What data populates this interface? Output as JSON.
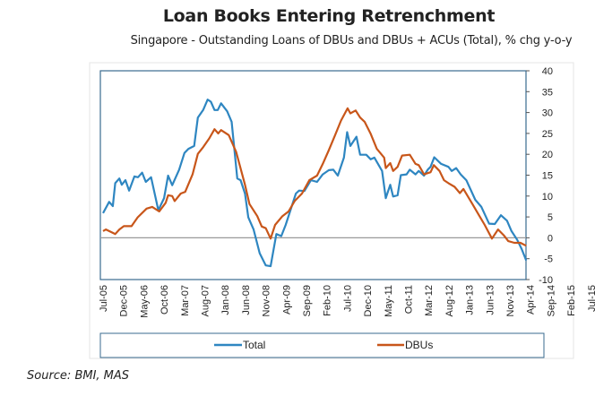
{
  "chart_data": {
    "type": "line",
    "title": "Loan Books Entering Retrenchment",
    "subtitle": "Singapore - Outstanding Loans of DBUs and DBUs + ACUs (Total), % chg y-o-y",
    "source": "Source: BMI, MAS",
    "x_unit": "months since Jul-05",
    "x_tick_labels": [
      "Jul-05",
      "Dec-05",
      "May-06",
      "Oct-06",
      "Mar-07",
      "Aug-07",
      "Jan-08",
      "Jun-08",
      "Nov-08",
      "Apr-09",
      "Sep-09",
      "Feb-10",
      "Jul-10",
      "Dec-10",
      "May-11",
      "Oct-11",
      "Mar-12",
      "Aug-12",
      "Jan-13",
      "Jun-13",
      "Nov-13",
      "Apr-14",
      "Sep-14",
      "Feb-15",
      "Jul-15",
      "Dec-15"
    ],
    "x_tick_step_months": 5,
    "xlim": [
      0,
      104
    ],
    "ylim": [
      -10,
      40
    ],
    "y_ticks": [
      -10,
      -5,
      0,
      5,
      10,
      15,
      20,
      25,
      30,
      35,
      40
    ],
    "y_axis_side": "right",
    "grid": false,
    "legend": "bottom",
    "series": [
      {
        "name": "Total",
        "color": "#2e86c1",
        "points": [
          [
            0,
            5.9
          ],
          [
            1.5,
            8.6
          ],
          [
            2.4,
            7.6
          ],
          [
            3,
            13.1
          ],
          [
            4,
            14.2
          ],
          [
            4.6,
            12.7
          ],
          [
            5.5,
            13.8
          ],
          [
            6.4,
            11.3
          ],
          [
            7.7,
            14.7
          ],
          [
            8.6,
            14.5
          ],
          [
            9.6,
            15.6
          ],
          [
            10.5,
            13.4
          ],
          [
            11.8,
            14.5
          ],
          [
            13.6,
            6.6
          ],
          [
            15,
            9.5
          ],
          [
            16,
            14.9
          ],
          [
            17,
            12.6
          ],
          [
            18.7,
            16.3
          ],
          [
            20,
            20.3
          ],
          [
            21,
            21.3
          ],
          [
            22.4,
            22
          ],
          [
            23.3,
            28.8
          ],
          [
            24.6,
            30.6
          ],
          [
            25.7,
            33.1
          ],
          [
            26.5,
            32.6
          ],
          [
            27.4,
            30.6
          ],
          [
            28.2,
            30.6
          ],
          [
            29,
            32.2
          ],
          [
            30.5,
            30.3
          ],
          [
            31.6,
            27.8
          ],
          [
            33,
            14.2
          ],
          [
            33.8,
            13.8
          ],
          [
            34.9,
            10.6
          ],
          [
            35.7,
            4.9
          ],
          [
            37,
            2
          ],
          [
            38.5,
            -3.7
          ],
          [
            40,
            -6.6
          ],
          [
            41.2,
            -6.8
          ],
          [
            42.6,
            0.9
          ],
          [
            43.8,
            0.4
          ],
          [
            44.9,
            3.1
          ],
          [
            47.4,
            10.6
          ],
          [
            48.2,
            11.3
          ],
          [
            49.5,
            11.2
          ],
          [
            51.1,
            13.8
          ],
          [
            52.6,
            13.4
          ],
          [
            54,
            15.2
          ],
          [
            55.5,
            16.2
          ],
          [
            56.6,
            16.3
          ],
          [
            57.7,
            14.9
          ],
          [
            59.2,
            19.2
          ],
          [
            60,
            25.3
          ],
          [
            60.8,
            22
          ],
          [
            62.3,
            24.2
          ],
          [
            63.2,
            19.9
          ],
          [
            64.7,
            19.9
          ],
          [
            65.8,
            18.8
          ],
          [
            66.7,
            19.2
          ],
          [
            68.6,
            16
          ],
          [
            69.5,
            9.5
          ],
          [
            70.6,
            12.7
          ],
          [
            71.3,
            9.9
          ],
          [
            72.4,
            10.2
          ],
          [
            73.2,
            15
          ],
          [
            74.6,
            15.2
          ],
          [
            75.4,
            16.3
          ],
          [
            76.8,
            15.2
          ],
          [
            77.6,
            16
          ],
          [
            78.9,
            14.9
          ],
          [
            79.8,
            16.3
          ],
          [
            80.5,
            17
          ],
          [
            81.4,
            19.3
          ],
          [
            83.1,
            17.7
          ],
          [
            84.9,
            17
          ],
          [
            85.7,
            16
          ],
          [
            86.8,
            16.7
          ],
          [
            87.9,
            15.2
          ],
          [
            89.3,
            13.8
          ],
          [
            91.5,
            9.1
          ],
          [
            93,
            7.4
          ],
          [
            94.9,
            3.4
          ],
          [
            96.3,
            3.3
          ],
          [
            97.8,
            5.4
          ],
          [
            99.3,
            4.1
          ],
          [
            100.4,
            1.6
          ],
          [
            101.8,
            -0.5
          ],
          [
            102.9,
            -2.7
          ],
          [
            104,
            -5.4
          ]
        ]
      },
      {
        "name": "DBUs",
        "color": "#c8561a",
        "points": [
          [
            0,
            1.6
          ],
          [
            0.7,
            2
          ],
          [
            3,
            0.9
          ],
          [
            4,
            2
          ],
          [
            5.1,
            2.8
          ],
          [
            7,
            2.8
          ],
          [
            8.5,
            4.9
          ],
          [
            10.7,
            7
          ],
          [
            12.1,
            7.4
          ],
          [
            13.8,
            6.3
          ],
          [
            15.4,
            8.4
          ],
          [
            16,
            10.2
          ],
          [
            17,
            10
          ],
          [
            17.6,
            8.8
          ],
          [
            19.1,
            10.6
          ],
          [
            20.2,
            11
          ],
          [
            22,
            15.2
          ],
          [
            23.3,
            20.1
          ],
          [
            24.6,
            21.7
          ],
          [
            26.1,
            23.8
          ],
          [
            27.4,
            26
          ],
          [
            28.3,
            25
          ],
          [
            29,
            25.8
          ],
          [
            30.9,
            24.6
          ],
          [
            32.7,
            20.6
          ],
          [
            34.9,
            12.7
          ],
          [
            36,
            8.1
          ],
          [
            37.9,
            5.2
          ],
          [
            39,
            2.7
          ],
          [
            40,
            2.3
          ],
          [
            41.2,
            -0.2
          ],
          [
            42.3,
            3.1
          ],
          [
            44.1,
            5.2
          ],
          [
            45.6,
            6.3
          ],
          [
            47.1,
            8.8
          ],
          [
            48.9,
            10.6
          ],
          [
            50.7,
            13.8
          ],
          [
            52.6,
            14.9
          ],
          [
            54,
            17.7
          ],
          [
            55.5,
            21
          ],
          [
            57,
            24.5
          ],
          [
            58.5,
            28.1
          ],
          [
            60.1,
            31
          ],
          [
            60.8,
            29.8
          ],
          [
            62.1,
            30.5
          ],
          [
            63.2,
            28.8
          ],
          [
            64.3,
            27.8
          ],
          [
            65.8,
            24.9
          ],
          [
            67.3,
            21.3
          ],
          [
            69.1,
            19.2
          ],
          [
            69.5,
            16.7
          ],
          [
            70.6,
            17.9
          ],
          [
            71.3,
            16
          ],
          [
            72.4,
            17
          ],
          [
            73.5,
            19.7
          ],
          [
            75.4,
            19.9
          ],
          [
            76.8,
            17.7
          ],
          [
            77.6,
            17.4
          ],
          [
            78.9,
            15.2
          ],
          [
            80.5,
            15.7
          ],
          [
            81.3,
            17.4
          ],
          [
            82.7,
            16
          ],
          [
            83.8,
            13.8
          ],
          [
            84.9,
            13.1
          ],
          [
            86.4,
            12.2
          ],
          [
            87.7,
            10.7
          ],
          [
            88.6,
            11.7
          ],
          [
            90.8,
            8.1
          ],
          [
            92.3,
            5.6
          ],
          [
            93.8,
            3.1
          ],
          [
            95.6,
            -0.2
          ],
          [
            97.1,
            2
          ],
          [
            98.5,
            0.6
          ],
          [
            99.6,
            -0.8
          ],
          [
            101.1,
            -1.2
          ],
          [
            102.6,
            -1.2
          ],
          [
            104,
            -1.9
          ]
        ]
      }
    ]
  }
}
